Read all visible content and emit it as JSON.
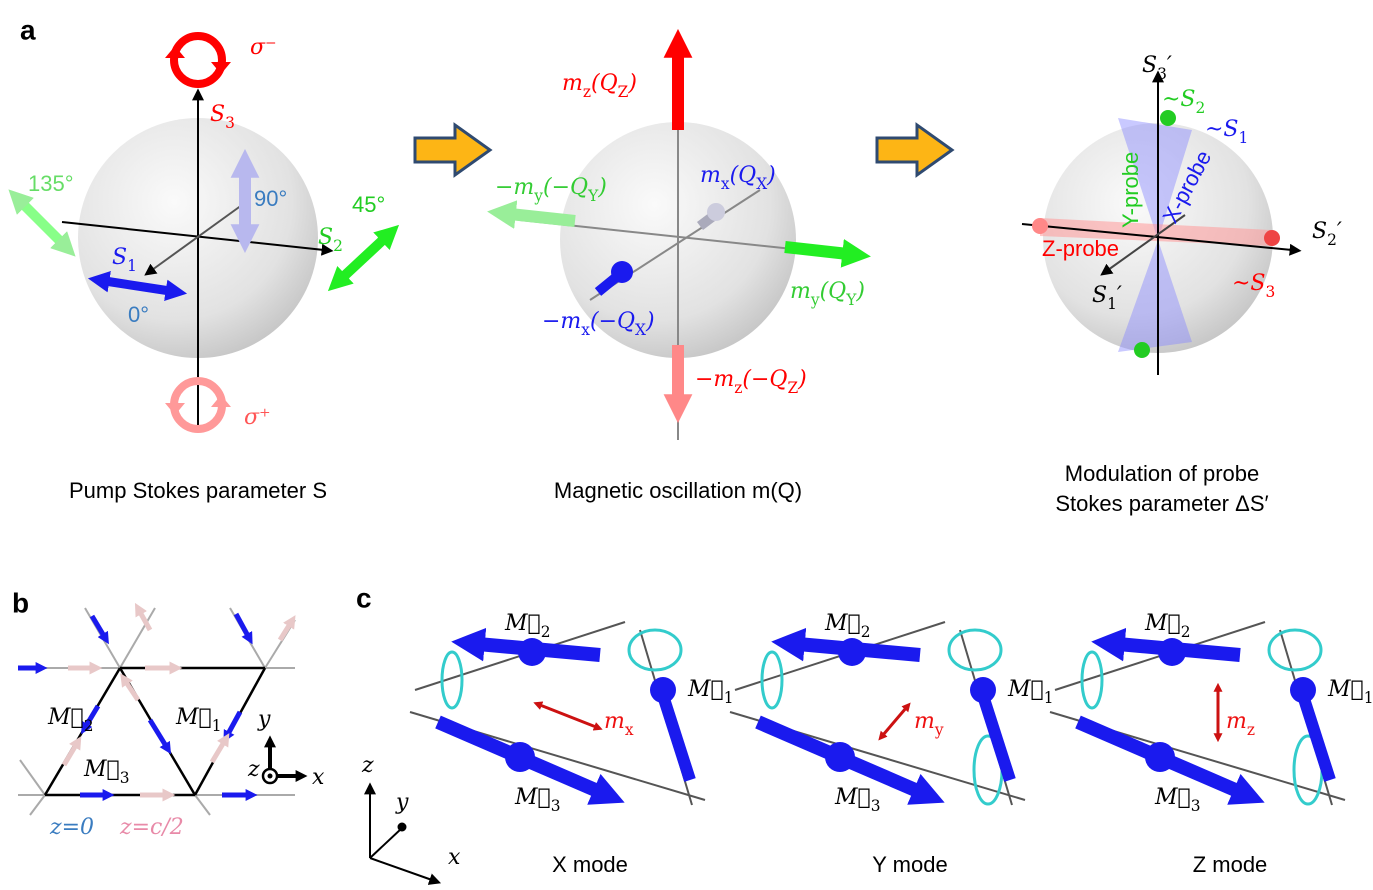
{
  "panel_a": {
    "label": "a",
    "pump": {
      "sigma_minus": "σ⁻",
      "sigma_plus": "σ⁺",
      "s3": [
        "S",
        "3"
      ],
      "s2": [
        "S",
        "2"
      ],
      "s1": [
        "S",
        "1"
      ],
      "angle_135": "135°",
      "angle_90": "90°",
      "angle_45": "45°",
      "angle_0": "0°",
      "caption": "Pump Stokes parameter S"
    },
    "oscillation": {
      "mz": [
        "m",
        "z",
        "(Q",
        "Z",
        ")"
      ],
      "neg_my": [
        "−m",
        "y",
        "(−Q",
        "Y",
        ")"
      ],
      "mx": [
        "m",
        "x",
        "(Q",
        "X",
        ")"
      ],
      "my": [
        "m",
        "y",
        "(Q",
        "Y",
        ")"
      ],
      "neg_mx": [
        "−m",
        "x",
        "(−Q",
        "X",
        ")"
      ],
      "neg_mz": [
        "−m",
        "z",
        "(−Q",
        "Z",
        ")"
      ],
      "caption": "Magnetic oscillation m(Q)"
    },
    "probe": {
      "s3p": [
        "S",
        "3",
        "′"
      ],
      "approx_s2": [
        "~S",
        "2"
      ],
      "approx_s1": [
        "~S",
        "1"
      ],
      "y_probe": "Y-probe",
      "x_probe": "X-probe",
      "s2p": [
        "S",
        "2",
        "′"
      ],
      "z_probe": "Z-probe",
      "s1p": [
        "S",
        "1",
        "′"
      ],
      "approx_s3": [
        "~S",
        "3"
      ],
      "caption": [
        "Modulation of probe",
        "Stokes parameter ΔS′"
      ]
    }
  },
  "panel_b": {
    "label": "b",
    "m2": [
      "M⃗",
      "2"
    ],
    "m1": [
      "M⃗",
      "1"
    ],
    "m3": [
      "M⃗",
      "3"
    ],
    "axis_y": "y",
    "axis_z": "z",
    "axis_x": "x",
    "layer_0": "z=0",
    "layer_half": "z=c/2"
  },
  "panel_c": {
    "label": "c",
    "axes": {
      "z": "z",
      "y": "y",
      "x": "x"
    },
    "modes": [
      {
        "name": "X mode",
        "m2": [
          "M⃗",
          "2"
        ],
        "m1": [
          "M⃗",
          "1"
        ],
        "m3": [
          "M⃗",
          "3"
        ],
        "oscillation": [
          "m",
          "x"
        ]
      },
      {
        "name": "Y mode",
        "m2": [
          "M⃗",
          "2"
        ],
        "m1": [
          "M⃗",
          "1"
        ],
        "m3": [
          "M⃗",
          "3"
        ],
        "oscillation": [
          "m",
          "y"
        ]
      },
      {
        "name": "Z mode",
        "m2": [
          "M⃗",
          "2"
        ],
        "m1": [
          "M⃗",
          "1"
        ],
        "m3": [
          "M⃗",
          "3"
        ],
        "oscillation": [
          "m",
          "z"
        ]
      }
    ]
  }
}
